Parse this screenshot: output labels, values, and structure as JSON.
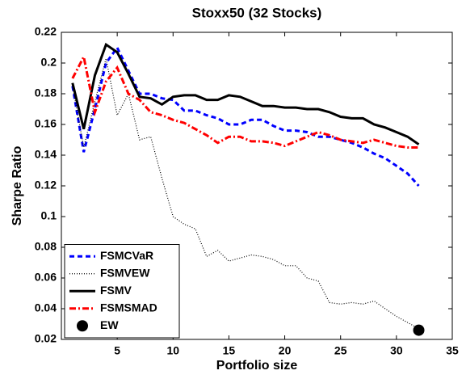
{
  "chart_data": {
    "type": "line",
    "title": "Stoxx50 (32 Stocks)",
    "x_label": "Portfolio size",
    "y_label": "Sharpe Ratio",
    "x": [
      1,
      2,
      3,
      4,
      5,
      6,
      7,
      8,
      9,
      10,
      11,
      12,
      13,
      14,
      15,
      16,
      17,
      18,
      19,
      20,
      21,
      22,
      23,
      24,
      25,
      26,
      27,
      28,
      29,
      30,
      31,
      32
    ],
    "series": [
      {
        "name": "FSMCVaR",
        "color": "#0000ff",
        "style": "dashed",
        "values": [
          0.185,
          0.142,
          0.17,
          0.2,
          0.21,
          0.195,
          0.18,
          0.18,
          0.177,
          0.176,
          0.169,
          0.169,
          0.166,
          0.164,
          0.16,
          0.16,
          0.163,
          0.163,
          0.159,
          0.156,
          0.156,
          0.155,
          0.152,
          0.152,
          0.15,
          0.148,
          0.145,
          0.141,
          0.138,
          0.133,
          0.128,
          0.12
        ]
      },
      {
        "name": "FSMVEW",
        "color": "#000000",
        "style": "dotted",
        "values": [
          0.185,
          0.145,
          0.175,
          0.203,
          0.166,
          0.18,
          0.15,
          0.152,
          0.125,
          0.1,
          0.095,
          0.092,
          0.074,
          0.078,
          0.071,
          0.073,
          0.075,
          0.074,
          0.072,
          0.068,
          0.068,
          0.06,
          0.058,
          0.044,
          0.043,
          0.044,
          0.043,
          0.045,
          0.04,
          0.035,
          0.031,
          0.027
        ]
      },
      {
        "name": "FSMV",
        "color": "#000000",
        "style": "solid",
        "values": [
          0.187,
          0.157,
          0.192,
          0.212,
          0.207,
          0.193,
          0.178,
          0.177,
          0.173,
          0.178,
          0.179,
          0.179,
          0.176,
          0.176,
          0.179,
          0.178,
          0.175,
          0.172,
          0.172,
          0.171,
          0.171,
          0.17,
          0.17,
          0.168,
          0.165,
          0.164,
          0.164,
          0.16,
          0.158,
          0.155,
          0.152,
          0.147
        ]
      },
      {
        "name": "FSMSMAD",
        "color": "#ff0000",
        "style": "dashdot",
        "values": [
          0.19,
          0.204,
          0.168,
          0.188,
          0.197,
          0.18,
          0.176,
          0.168,
          0.166,
          0.163,
          0.161,
          0.157,
          0.153,
          0.148,
          0.152,
          0.152,
          0.149,
          0.149,
          0.148,
          0.146,
          0.149,
          0.152,
          0.155,
          0.153,
          0.15,
          0.149,
          0.148,
          0.15,
          0.148,
          0.146,
          0.145,
          0.145
        ]
      },
      {
        "name": "EW",
        "color": "#000000",
        "style": "marker",
        "x": [
          32
        ],
        "values": [
          0.026
        ]
      }
    ],
    "xlim": [
      0,
      35
    ],
    "xticks": [
      5,
      10,
      15,
      20,
      25,
      30,
      35
    ],
    "ylim": [
      0.02,
      0.22
    ],
    "yticks": [
      0.02,
      0.04,
      0.06,
      0.08,
      0.1,
      0.12,
      0.14,
      0.16,
      0.18,
      0.2,
      0.22
    ],
    "grid": false,
    "legend": "lower left"
  }
}
